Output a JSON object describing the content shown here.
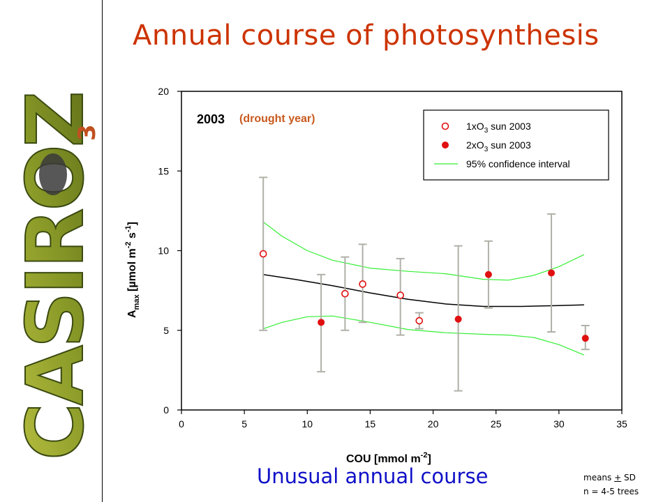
{
  "slide": {
    "title": "Annual course of photosynthesis",
    "subtitle": "Unusual annual course",
    "footnote_line1": "means ",
    "footnote_pm": "+",
    "footnote_sd": " SD",
    "footnote_line2": "n = 4-5 trees",
    "logo_text": "CASIROZ",
    "logo_sub": "3"
  },
  "colors": {
    "title": "#cc3300",
    "subtitle": "#1010c8",
    "open_markers": "#e01010",
    "filled_markers": "#e01010",
    "confidence": "#33ee33",
    "fit": "#000000",
    "error_bars": "#b0b0a8",
    "year_note": "#c85a1e"
  },
  "chart_data": {
    "type": "scatter",
    "year_label": "2003",
    "year_note": "(drought year)",
    "xlabel_main": "COU [mmol m",
    "xlabel_sup": "-2",
    "xlabel_end": "]",
    "ylabel_a": "A",
    "ylabel_sub": "max",
    "ylabel_mid": " [µmol m",
    "ylabel_sup1": "-2",
    "ylabel_s": " s",
    "ylabel_sup2": "-1",
    "ylabel_end": "]",
    "xlim": [
      0,
      35
    ],
    "ylim": [
      0,
      20
    ],
    "xticks": [
      0,
      5,
      10,
      15,
      20,
      25,
      30,
      35
    ],
    "yticks": [
      0,
      5,
      10,
      15,
      20
    ],
    "legend_position": "top-right",
    "legend": [
      {
        "label_pre": "1xO",
        "label_sub": "3",
        "label_post": " sun 2003",
        "marker": "open-circle"
      },
      {
        "label_pre": "2xO",
        "label_sub": "3",
        "label_post": " sun 2003",
        "marker": "filled-circle"
      },
      {
        "label_pre": "95% confidence interval",
        "label_sub": "",
        "label_post": "",
        "marker": "line"
      }
    ],
    "series": [
      {
        "name": "1xO3 sun 2003",
        "marker": "open-circle",
        "points": [
          {
            "x": 6.5,
            "y": 9.8,
            "ylo": 5.0,
            "yhi": 14.6
          },
          {
            "x": 13.0,
            "y": 7.3,
            "ylo": 5.0,
            "yhi": 9.6
          },
          {
            "x": 14.4,
            "y": 7.9,
            "ylo": 5.5,
            "yhi": 10.4
          },
          {
            "x": 17.4,
            "y": 7.2,
            "ylo": 4.7,
            "yhi": 9.5
          },
          {
            "x": 18.9,
            "y": 5.6,
            "ylo": 5.1,
            "yhi": 6.1
          }
        ]
      },
      {
        "name": "2xO3 sun 2003",
        "marker": "filled-circle",
        "points": [
          {
            "x": 11.1,
            "y": 5.5,
            "ylo": 2.4,
            "yhi": 8.5
          },
          {
            "x": 22.0,
            "y": 5.7,
            "ylo": 1.2,
            "yhi": 10.3
          },
          {
            "x": 24.4,
            "y": 8.5,
            "ylo": 6.4,
            "yhi": 10.6
          },
          {
            "x": 29.4,
            "y": 8.6,
            "ylo": 4.9,
            "yhi": 12.3
          },
          {
            "x": 32.1,
            "y": 4.5,
            "ylo": 3.8,
            "yhi": 5.3
          }
        ]
      }
    ],
    "fit_line": {
      "x": [
        6.5,
        9,
        12,
        15,
        18,
        21,
        24,
        27,
        30,
        32
      ],
      "y": [
        8.5,
        8.2,
        7.8,
        7.35,
        6.95,
        6.65,
        6.5,
        6.5,
        6.55,
        6.6
      ]
    },
    "ci_upper": {
      "x": [
        6.5,
        8,
        10,
        12,
        15,
        18,
        21,
        24,
        26,
        28,
        30,
        32
      ],
      "y": [
        11.8,
        10.9,
        10.0,
        9.4,
        8.9,
        8.7,
        8.55,
        8.2,
        8.15,
        8.45,
        9.0,
        9.75
      ]
    },
    "ci_lower": {
      "x": [
        6.5,
        8,
        10,
        12,
        15,
        18,
        21,
        24,
        26,
        28,
        30,
        32
      ],
      "y": [
        5.1,
        5.5,
        5.85,
        5.9,
        5.5,
        5.05,
        4.85,
        4.75,
        4.7,
        4.55,
        4.1,
        3.45
      ]
    }
  }
}
